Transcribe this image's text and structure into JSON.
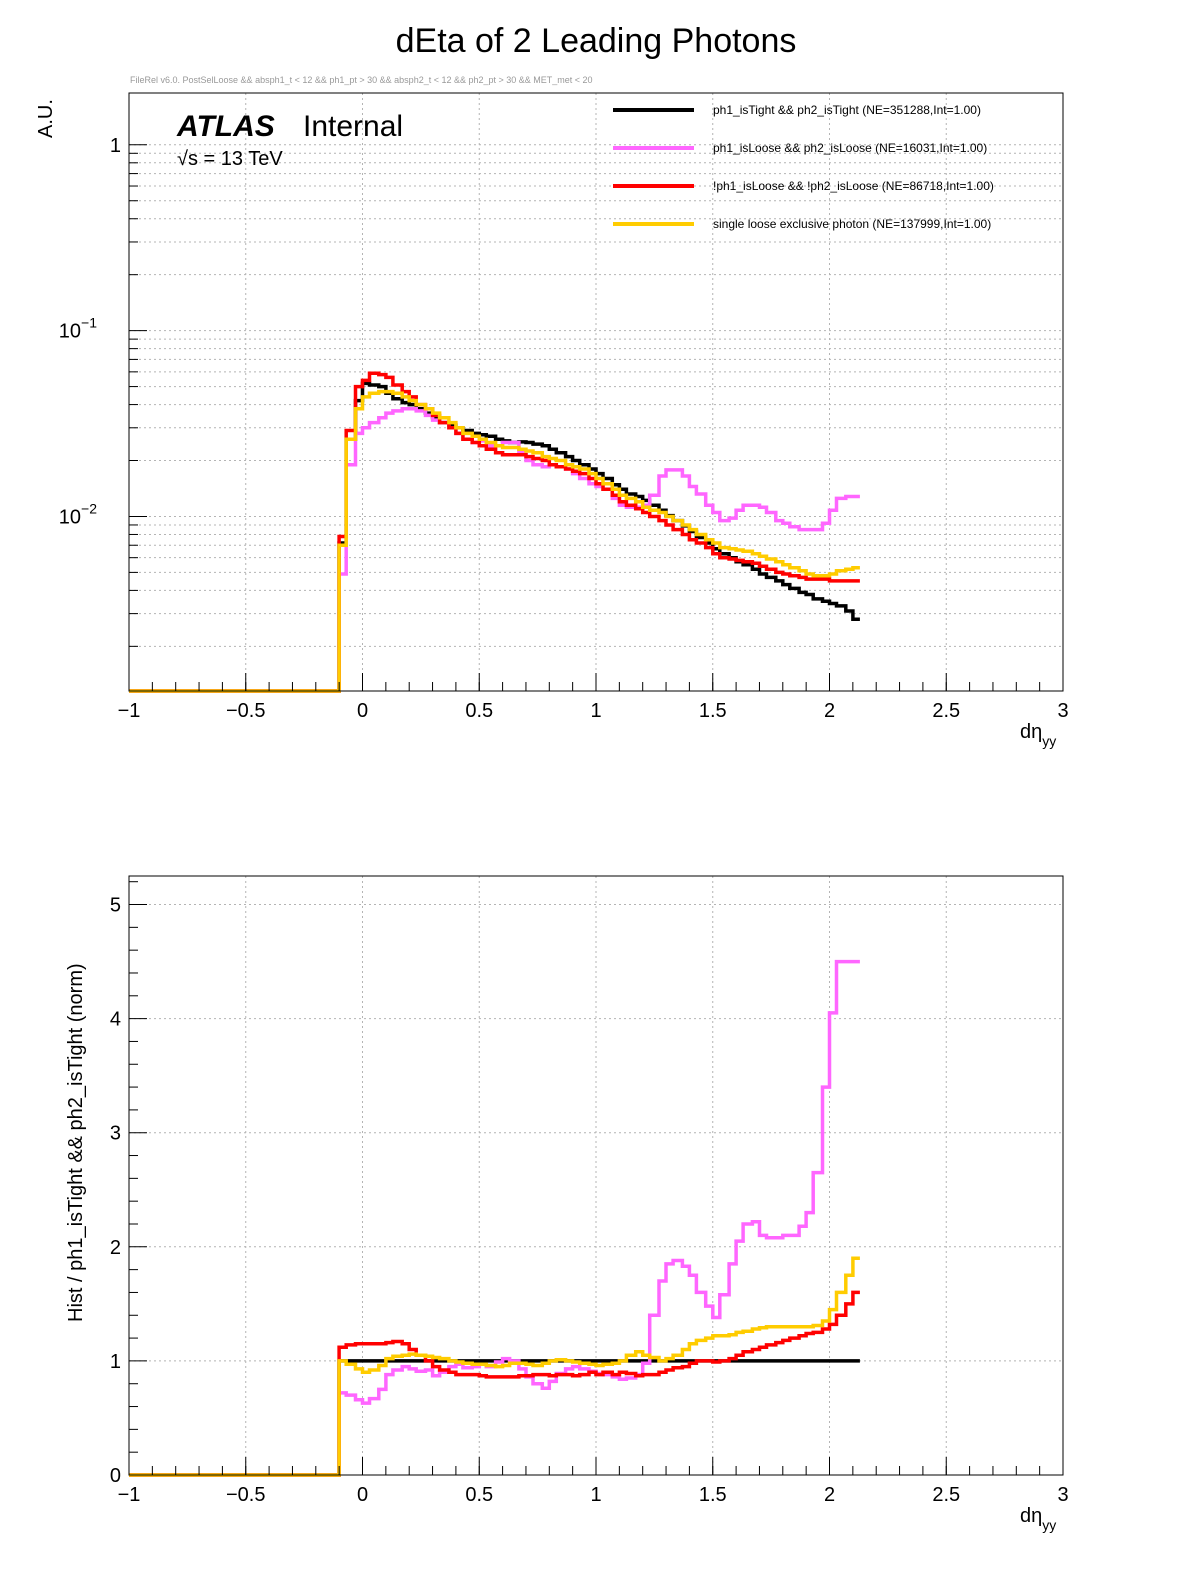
{
  "title": "dEta of 2 Leading Photons",
  "cut_string": "FileRel v6.0. PostSelLoose && absph1_t < 12 && ph1_pt > 30 && absph2_t < 12 && ph2_pt > 30 && MET_met < 20",
  "atlas_label": {
    "atlas": "ATLAS",
    "internal": "Internal",
    "energy": "√s = 13 TeV"
  },
  "chart_data": [
    {
      "type": "line",
      "subtype": "step-histogram",
      "title": "dEta of 2 Leading Photons",
      "xlabel": "dη",
      "xlabel_sub": "yy",
      "ylabel": "A.U.",
      "xlim": [
        -1,
        3
      ],
      "ylim": [
        0.00115,
        1.9
      ],
      "log_y": true,
      "grid": true,
      "legend_position": "top-right",
      "x_ticks": [
        "−1",
        "−0.5",
        "0",
        "0.5",
        "1",
        "1.5",
        "2",
        "2.5",
        "3"
      ],
      "y_ticks": [
        {
          "value": 1,
          "label": "1"
        },
        {
          "value": 0.1,
          "label": "10",
          "exp": "−1"
        },
        {
          "value": 0.01,
          "label": "10",
          "exp": "−2"
        }
      ],
      "bin_edges_x": [
        -1.0,
        -0.1,
        -0.07,
        -0.03,
        0.0,
        0.03,
        0.07,
        0.1,
        0.13,
        0.17,
        0.2,
        0.23,
        0.27,
        0.3,
        0.33,
        0.37,
        0.4,
        0.43,
        0.47,
        0.5,
        0.53,
        0.57,
        0.6,
        0.63,
        0.67,
        0.7,
        0.73,
        0.77,
        0.8,
        0.83,
        0.87,
        0.9,
        0.93,
        0.97,
        1.0,
        1.03,
        1.07,
        1.1,
        1.13,
        1.17,
        1.2,
        1.23,
        1.27,
        1.3,
        1.33,
        1.37,
        1.4,
        1.43,
        1.47,
        1.5,
        1.53,
        1.57,
        1.6,
        1.63,
        1.67,
        1.7,
        1.73,
        1.77,
        1.8,
        1.83,
        1.87,
        1.9,
        1.93,
        1.97,
        2.0,
        2.03,
        2.07,
        2.1,
        2.13,
        2.17,
        2.2,
        2.23,
        2.27,
        2.3,
        2.33,
        2.37,
        2.4,
        2.43,
        2.47,
        2.5,
        2.53,
        2.57,
        2.6,
        2.63,
        2.67,
        2.7,
        2.73,
        2.77,
        2.8,
        2.83,
        2.87,
        2.9,
        2.93,
        2.97,
        3.0
      ],
      "underflow_value": 0.00115,
      "series": [
        {
          "name": "ph1_isTight && ph2_isTight (NE=351288,Int=1.00)",
          "color": "#000000",
          "values": [
            0.00115,
            0.0072,
            0.026,
            0.042,
            0.052,
            0.051,
            0.05,
            0.046,
            0.043,
            0.041,
            0.04,
            0.038,
            0.036,
            0.034,
            0.032,
            0.031,
            0.03,
            0.029,
            0.028,
            0.0275,
            0.027,
            0.026,
            0.0255,
            0.025,
            0.0252,
            0.025,
            0.0245,
            0.024,
            0.023,
            0.022,
            0.021,
            0.02,
            0.019,
            0.018,
            0.017,
            0.016,
            0.0148,
            0.014,
            0.0132,
            0.0128,
            0.0122,
            0.0115,
            0.0108,
            0.0101,
            0.0095,
            0.0089,
            0.0083,
            0.0077,
            0.0072,
            0.0067,
            0.0063,
            0.006,
            0.0057,
            0.0055,
            0.0052,
            0.0049,
            0.0047,
            0.0045,
            0.0043,
            0.0041,
            0.0039,
            0.0038,
            0.0036,
            0.0035,
            0.0034,
            0.0033,
            0.0031,
            0.0028
          ]
        },
        {
          "name": "ph1_isLoose && ph2_isLoose (NE=16031,Int=1.00)",
          "color": "#ff66ff",
          "values": [
            0.00115,
            0.0049,
            0.019,
            0.028,
            0.03,
            0.032,
            0.034,
            0.036,
            0.037,
            0.038,
            0.038,
            0.037,
            0.035,
            0.033,
            0.032,
            0.03,
            0.028,
            0.026,
            0.025,
            0.0255,
            0.024,
            0.024,
            0.025,
            0.025,
            0.022,
            0.02,
            0.019,
            0.0185,
            0.019,
            0.0185,
            0.018,
            0.017,
            0.016,
            0.015,
            0.0145,
            0.014,
            0.0125,
            0.0115,
            0.0112,
            0.0112,
            0.0115,
            0.013,
            0.0165,
            0.0178,
            0.0178,
            0.0165,
            0.0145,
            0.0132,
            0.0115,
            0.0105,
            0.0095,
            0.0098,
            0.0108,
            0.0115,
            0.0115,
            0.0112,
            0.0105,
            0.0095,
            0.0092,
            0.0088,
            0.0085,
            0.0085,
            0.0085,
            0.0092,
            0.0108,
            0.0125,
            0.0128,
            0.0128
          ]
        },
        {
          "name": "!ph1_isLoose && !ph2_isLoose (NE=86718,Int=1.00)",
          "color": "#ff0000",
          "values": [
            0.00115,
            0.0078,
            0.029,
            0.05,
            0.054,
            0.059,
            0.058,
            0.056,
            0.051,
            0.047,
            0.044,
            0.04,
            0.038,
            0.035,
            0.032,
            0.03,
            0.028,
            0.026,
            0.025,
            0.024,
            0.023,
            0.022,
            0.0215,
            0.0215,
            0.0215,
            0.021,
            0.0205,
            0.02,
            0.019,
            0.0185,
            0.018,
            0.0175,
            0.017,
            0.016,
            0.015,
            0.014,
            0.013,
            0.012,
            0.0115,
            0.011,
            0.0105,
            0.01,
            0.0095,
            0.009,
            0.0085,
            0.008,
            0.0075,
            0.0072,
            0.0068,
            0.0063,
            0.006,
            0.0059,
            0.0058,
            0.0057,
            0.0056,
            0.0054,
            0.0052,
            0.005,
            0.0049,
            0.0048,
            0.0047,
            0.0046,
            0.0046,
            0.0046,
            0.0045,
            0.0045,
            0.0045,
            0.0045
          ]
        },
        {
          "name": "single loose exclusive photon (NE=137999,Int=1.00)",
          "color": "#ffcc00",
          "values": [
            0.00115,
            0.007,
            0.026,
            0.038,
            0.044,
            0.046,
            0.047,
            0.047,
            0.046,
            0.044,
            0.042,
            0.04,
            0.038,
            0.036,
            0.034,
            0.032,
            0.03,
            0.028,
            0.027,
            0.026,
            0.025,
            0.024,
            0.0235,
            0.0235,
            0.023,
            0.0225,
            0.022,
            0.021,
            0.0205,
            0.02,
            0.019,
            0.0185,
            0.018,
            0.017,
            0.016,
            0.015,
            0.014,
            0.013,
            0.0125,
            0.012,
            0.0112,
            0.0108,
            0.0105,
            0.01,
            0.0095,
            0.009,
            0.0085,
            0.008,
            0.0075,
            0.0072,
            0.0068,
            0.0067,
            0.0066,
            0.0065,
            0.0063,
            0.0061,
            0.0059,
            0.0057,
            0.0055,
            0.0053,
            0.0051,
            0.0049,
            0.0048,
            0.0048,
            0.0049,
            0.0051,
            0.0052,
            0.0053
          ]
        }
      ]
    },
    {
      "type": "line",
      "subtype": "step-histogram",
      "xlabel": "dη",
      "xlabel_sub": "yy",
      "ylabel": "Hist / ph1_isTight && ph2_isTight (norm)",
      "xlim": [
        -1,
        3
      ],
      "ylim": [
        0,
        5.25
      ],
      "log_y": false,
      "grid": true,
      "x_ticks": [
        "−1",
        "−0.5",
        "0",
        "0.5",
        "1",
        "1.5",
        "2",
        "2.5",
        "3"
      ],
      "y_ticks": [
        {
          "value": 0,
          "label": "0"
        },
        {
          "value": 1,
          "label": "1"
        },
        {
          "value": 2,
          "label": "2"
        },
        {
          "value": 3,
          "label": "3"
        },
        {
          "value": 4,
          "label": "4"
        },
        {
          "value": 5,
          "label": "5"
        }
      ],
      "bin_edges_x": [
        -1.0,
        -0.1,
        -0.07,
        -0.03,
        0.0,
        0.03,
        0.07,
        0.1,
        0.13,
        0.17,
        0.2,
        0.23,
        0.27,
        0.3,
        0.33,
        0.37,
        0.4,
        0.43,
        0.47,
        0.5,
        0.53,
        0.57,
        0.6,
        0.63,
        0.67,
        0.7,
        0.73,
        0.77,
        0.8,
        0.83,
        0.87,
        0.9,
        0.93,
        0.97,
        1.0,
        1.03,
        1.07,
        1.1,
        1.13,
        1.17,
        1.2,
        1.23,
        1.27,
        1.3,
        1.33,
        1.37,
        1.4,
        1.43,
        1.47,
        1.5,
        1.53,
        1.57,
        1.6,
        1.63,
        1.67,
        1.7,
        1.73,
        1.77,
        1.8,
        1.83,
        1.87,
        1.9,
        1.93,
        1.97,
        2.0,
        2.03,
        2.07,
        2.1,
        2.13,
        2.17,
        2.2,
        2.23,
        2.27,
        2.3,
        2.33,
        2.37,
        2.4,
        2.43,
        2.47,
        2.5,
        2.53,
        2.57,
        2.6,
        2.63,
        2.67,
        2.7,
        2.73,
        2.77,
        2.8,
        2.83,
        2.87,
        2.9,
        2.93,
        2.97,
        3.0
      ],
      "series": [
        {
          "name": "ph1_isTight && ph2_isTight (NE=351288,Int=1.00)",
          "color": "#000000",
          "values": [
            0,
            1.0,
            1.0,
            1.0,
            1.0,
            1.0,
            1.0,
            1.0,
            1.0,
            1.0,
            1.0,
            1.0,
            1.0,
            1.0,
            1.0,
            1.0,
            1.0,
            1.0,
            1.0,
            1.0,
            1.0,
            1.0,
            1.0,
            1.0,
            1.0,
            1.0,
            1.0,
            1.0,
            1.0,
            1.0,
            1.0,
            1.0,
            1.0,
            1.0,
            1.0,
            1.0,
            1.0,
            1.0,
            1.0,
            1.0,
            1.0,
            1.0,
            1.0,
            1.0,
            1.0,
            1.0,
            1.0,
            1.0,
            1.0,
            1.0,
            1.0,
            1.0,
            1.0,
            1.0,
            1.0,
            1.0,
            1.0,
            1.0,
            1.0,
            1.0,
            1.0,
            1.0,
            1.0,
            1.0,
            1.0,
            1.0,
            1.0,
            1.0
          ]
        },
        {
          "name": "ph1_isLoose && ph2_isLoose (NE=16031,Int=1.00)",
          "color": "#ff66ff",
          "values": [
            0,
            0.72,
            0.7,
            0.66,
            0.63,
            0.67,
            0.75,
            0.88,
            0.92,
            0.95,
            0.93,
            0.91,
            0.92,
            0.87,
            0.9,
            0.95,
            0.97,
            0.94,
            0.95,
            0.97,
            0.95,
            0.99,
            1.02,
            1.0,
            0.93,
            0.86,
            0.8,
            0.76,
            0.82,
            0.89,
            0.93,
            0.95,
            0.93,
            0.91,
            0.89,
            0.88,
            0.86,
            0.84,
            0.85,
            0.88,
            0.98,
            1.4,
            1.7,
            1.85,
            1.88,
            1.83,
            1.75,
            1.6,
            1.48,
            1.38,
            1.58,
            1.85,
            2.05,
            2.2,
            2.22,
            2.1,
            2.08,
            2.08,
            2.1,
            2.1,
            2.18,
            2.3,
            2.65,
            3.4,
            4.05,
            4.5,
            4.5,
            4.5
          ]
        },
        {
          "name": "!ph1_isLoose && !ph2_isLoose (NE=86718,Int=1.00)",
          "color": "#ff0000",
          "values": [
            0,
            1.12,
            1.14,
            1.15,
            1.15,
            1.15,
            1.15,
            1.16,
            1.17,
            1.15,
            1.1,
            1.05,
            1.0,
            0.95,
            0.92,
            0.9,
            0.88,
            0.88,
            0.88,
            0.87,
            0.86,
            0.86,
            0.86,
            0.86,
            0.87,
            0.87,
            0.88,
            0.88,
            0.87,
            0.88,
            0.88,
            0.87,
            0.88,
            0.9,
            0.88,
            0.9,
            0.88,
            0.9,
            0.89,
            0.87,
            0.88,
            0.88,
            0.9,
            0.92,
            0.94,
            0.95,
            0.98,
            1.0,
            1.0,
            0.99,
            1.0,
            1.02,
            1.05,
            1.08,
            1.1,
            1.12,
            1.14,
            1.16,
            1.18,
            1.2,
            1.22,
            1.24,
            1.25,
            1.28,
            1.32,
            1.4,
            1.5,
            1.6
          ]
        },
        {
          "name": "single loose exclusive photon (NE=137999,Int=1.00)",
          "color": "#ffcc00",
          "values": [
            0,
            1.0,
            0.97,
            0.93,
            0.9,
            0.92,
            0.96,
            1.02,
            1.04,
            1.05,
            1.06,
            1.05,
            1.04,
            1.03,
            1.02,
            1.0,
            0.99,
            0.98,
            0.97,
            0.97,
            0.96,
            0.95,
            0.96,
            0.98,
            0.98,
            0.97,
            0.96,
            0.98,
            1.0,
            1.01,
            1.0,
            0.99,
            0.98,
            0.97,
            0.96,
            0.97,
            0.98,
            1.0,
            1.05,
            1.08,
            1.05,
            1.03,
            1.0,
            1.02,
            1.05,
            1.1,
            1.15,
            1.18,
            1.2,
            1.22,
            1.22,
            1.23,
            1.25,
            1.26,
            1.28,
            1.29,
            1.3,
            1.3,
            1.3,
            1.3,
            1.3,
            1.3,
            1.31,
            1.35,
            1.45,
            1.6,
            1.75,
            1.9
          ]
        }
      ]
    }
  ]
}
